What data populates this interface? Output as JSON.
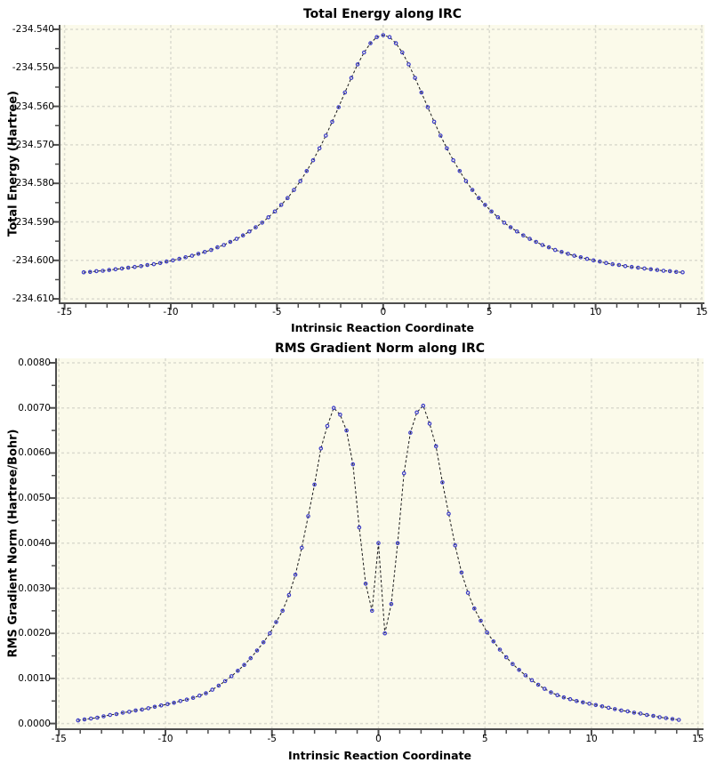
{
  "page": {
    "background": "#ffffff"
  },
  "colors": {
    "plot_background": "#FBFAEA",
    "grid": "#DBDBCF",
    "axis": "#4D4D4D",
    "line": "#1B1B1B",
    "marker": "#3C3CC8",
    "text": "#000000"
  },
  "chart_data": [
    {
      "type": "scatter",
      "title": "Total Energy along IRC",
      "xlabel": "Intrinsic Reaction Coordinate",
      "ylabel": "Total Energy (Hartree)",
      "xlim": [
        -15.2,
        15.2
      ],
      "ylim": [
        -234.611,
        -234.5385
      ],
      "grid": true,
      "legend_position": "none",
      "line_style": "dashed",
      "marker": "open-dot",
      "x_ticks": {
        "values": [
          -15,
          -10,
          -5,
          0,
          5,
          10,
          15
        ],
        "labels": [
          "-15",
          "-10",
          "-5",
          "0",
          "5",
          "10",
          "15"
        ],
        "minor_step": 1
      },
      "y_ticks": {
        "values": [
          -234.54,
          -234.55,
          -234.56,
          -234.57,
          -234.58,
          -234.59,
          -234.6,
          -234.61
        ],
        "labels": [
          "-234.540",
          "-234.550",
          "-234.560",
          "-234.570",
          "-234.580",
          "-234.590",
          "-234.600",
          "-234.610"
        ],
        "minor_step": 0.005
      },
      "x": [
        -14.1,
        -13.8,
        -13.5,
        -13.2,
        -12.9,
        -12.6,
        -12.3,
        -12.0,
        -11.7,
        -11.4,
        -11.1,
        -10.8,
        -10.5,
        -10.2,
        -9.9,
        -9.6,
        -9.3,
        -9.0,
        -8.7,
        -8.4,
        -8.1,
        -7.8,
        -7.5,
        -7.2,
        -6.9,
        -6.6,
        -6.3,
        -6.0,
        -5.7,
        -5.4,
        -5.1,
        -4.8,
        -4.5,
        -4.2,
        -3.9,
        -3.6,
        -3.3,
        -3.0,
        -2.7,
        -2.4,
        -2.1,
        -1.8,
        -1.5,
        -1.2,
        -0.9,
        -0.6,
        -0.3,
        0.0,
        0.3,
        0.6,
        0.9,
        1.2,
        1.5,
        1.8,
        2.1,
        2.4,
        2.7,
        3.0,
        3.3,
        3.6,
        3.9,
        4.2,
        4.5,
        4.8,
        5.1,
        5.4,
        5.7,
        6.0,
        6.3,
        6.6,
        6.9,
        7.2,
        7.5,
        7.8,
        8.1,
        8.4,
        8.7,
        9.0,
        9.3,
        9.6,
        9.9,
        10.2,
        10.5,
        10.8,
        11.1,
        11.4,
        11.7,
        12.0,
        12.3,
        12.6,
        12.9,
        13.2,
        13.5,
        13.8,
        14.1
      ],
      "y": [
        -234.6031,
        -234.603,
        -234.6028,
        -234.6027,
        -234.6025,
        -234.6023,
        -234.6021,
        -234.6019,
        -234.6017,
        -234.6015,
        -234.6012,
        -234.601,
        -234.6007,
        -234.6003,
        -234.6,
        -234.5996,
        -234.5992,
        -234.5988,
        -234.5983,
        -234.5978,
        -234.5973,
        -234.5966,
        -234.596,
        -234.5952,
        -234.5944,
        -234.5935,
        -234.5925,
        -234.5914,
        -234.5902,
        -234.5888,
        -234.5873,
        -234.5856,
        -234.5838,
        -234.5817,
        -234.5794,
        -234.5768,
        -234.574,
        -234.5709,
        -234.5676,
        -234.564,
        -234.5602,
        -234.5564,
        -234.5526,
        -234.5491,
        -234.546,
        -234.5436,
        -234.542,
        -234.5415,
        -234.542,
        -234.5436,
        -234.546,
        -234.5491,
        -234.5526,
        -234.5564,
        -234.5602,
        -234.564,
        -234.5676,
        -234.5709,
        -234.574,
        -234.5768,
        -234.5794,
        -234.5817,
        -234.5838,
        -234.5856,
        -234.5873,
        -234.5888,
        -234.5902,
        -234.5914,
        -234.5925,
        -234.5935,
        -234.5944,
        -234.5952,
        -234.596,
        -234.5966,
        -234.5973,
        -234.5978,
        -234.5983,
        -234.5988,
        -234.5992,
        -234.5996,
        -234.6,
        -234.6003,
        -234.6007,
        -234.601,
        -234.6012,
        -234.6015,
        -234.6017,
        -234.6019,
        -234.6021,
        -234.6023,
        -234.6025,
        -234.6027,
        -234.6028,
        -234.603,
        -234.6031
      ]
    },
    {
      "type": "scatter",
      "title": "RMS Gradient Norm along IRC",
      "xlabel": "Intrinsic Reaction Coordinate",
      "ylabel": "RMS Gradient Norm (Hartree/Bohr)",
      "xlim": [
        -15.2,
        15.2
      ],
      "ylim": [
        -0.00013,
        0.00813
      ],
      "grid": true,
      "legend_position": "none",
      "line_style": "dashed",
      "marker": "open-dot",
      "x_ticks": {
        "values": [
          -15,
          -10,
          -5,
          0,
          5,
          10,
          15
        ],
        "labels": [
          "-15",
          "-10",
          "-5",
          "0",
          "5",
          "10",
          "15"
        ],
        "minor_step": 1
      },
      "y_ticks": {
        "values": [
          0.008,
          0.007,
          0.006,
          0.005,
          0.004,
          0.003,
          0.002,
          0.001,
          0.0
        ],
        "labels": [
          "0.0080",
          "0.0070",
          "0.0060",
          "0.0050",
          "0.0040",
          "0.0030",
          "0.0020",
          "0.0010",
          "0.0000"
        ],
        "minor_step": 0.0005
      },
      "x": [
        -14.1,
        -13.8,
        -13.5,
        -13.2,
        -12.9,
        -12.6,
        -12.3,
        -12.0,
        -11.7,
        -11.4,
        -11.1,
        -10.8,
        -10.5,
        -10.2,
        -9.9,
        -9.6,
        -9.3,
        -9.0,
        -8.7,
        -8.4,
        -8.1,
        -7.8,
        -7.5,
        -7.2,
        -6.9,
        -6.6,
        -6.3,
        -6.0,
        -5.7,
        -5.4,
        -5.1,
        -4.8,
        -4.5,
        -4.2,
        -3.9,
        -3.6,
        -3.3,
        -3.0,
        -2.7,
        -2.4,
        -2.1,
        -1.8,
        -1.5,
        -1.2,
        -0.9,
        -0.6,
        -0.3,
        0.0,
        0.3,
        0.6,
        0.9,
        1.2,
        1.5,
        1.8,
        2.1,
        2.4,
        2.7,
        3.0,
        3.3,
        3.6,
        3.9,
        4.2,
        4.5,
        4.8,
        5.1,
        5.4,
        5.7,
        6.0,
        6.3,
        6.6,
        6.9,
        7.2,
        7.5,
        7.8,
        8.1,
        8.4,
        8.7,
        9.0,
        9.3,
        9.6,
        9.9,
        10.2,
        10.5,
        10.8,
        11.1,
        11.4,
        11.7,
        12.0,
        12.3,
        12.6,
        12.9,
        13.2,
        13.5,
        13.8,
        14.1
      ],
      "y": [
        7e-05,
        9e-05,
        0.00011,
        0.00013,
        0.00016,
        0.00019,
        0.00021,
        0.00024,
        0.00026,
        0.00029,
        0.00031,
        0.00034,
        0.00037,
        0.0004,
        0.00043,
        0.00046,
        0.0005,
        0.00053,
        0.00057,
        0.00062,
        0.00067,
        0.00075,
        0.00084,
        0.00094,
        0.00105,
        0.00117,
        0.0013,
        0.00145,
        0.00162,
        0.0018,
        0.002,
        0.00225,
        0.0025,
        0.00285,
        0.0033,
        0.0039,
        0.0046,
        0.0053,
        0.0061,
        0.0066,
        0.007,
        0.00685,
        0.0065,
        0.00575,
        0.00435,
        0.0031,
        0.0025,
        0.004,
        0.002,
        0.00265,
        0.004,
        0.00555,
        0.00645,
        0.0069,
        0.00705,
        0.00665,
        0.00615,
        0.00535,
        0.00465,
        0.00395,
        0.00335,
        0.0029,
        0.00255,
        0.00228,
        0.00202,
        0.00182,
        0.00164,
        0.00147,
        0.00132,
        0.00119,
        0.00107,
        0.00096,
        0.00086,
        0.00077,
        0.00069,
        0.00063,
        0.00058,
        0.00054,
        0.0005,
        0.00047,
        0.00044,
        0.00041,
        0.00038,
        0.00035,
        0.00032,
        0.00029,
        0.00027,
        0.00024,
        0.00022,
        0.00019,
        0.00017,
        0.00014,
        0.00012,
        0.0001,
        8e-05
      ]
    }
  ]
}
